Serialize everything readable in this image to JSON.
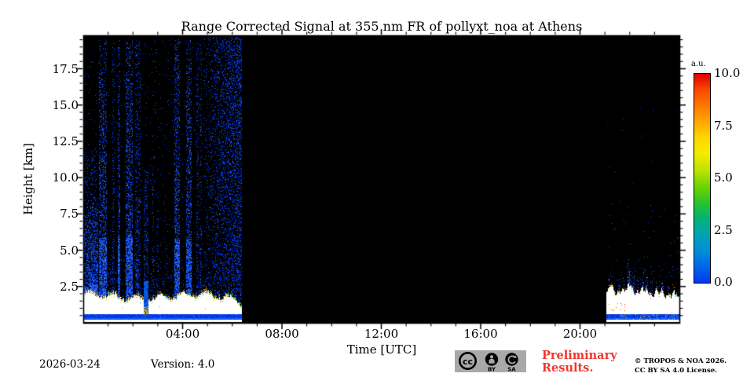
{
  "chart_data": {
    "type": "heatmap",
    "title": "Range Corrected Signal at 355 nm FR of pollyxt_noa at Athens",
    "xlabel": "Time [UTC]",
    "ylabel": "Height [km]",
    "x_axis": {
      "unit": "hours UTC",
      "range": [
        0,
        24
      ],
      "major_ticks": [
        4,
        8,
        12,
        16,
        20
      ],
      "major_tick_labels": [
        "04:00",
        "08:00",
        "12:00",
        "16:00",
        "20:00"
      ],
      "minor_tick_every_hours": 1
    },
    "y_axis": {
      "unit": "km",
      "range": [
        0,
        19.8
      ],
      "major_ticks": [
        2.5,
        5.0,
        7.5,
        10.0,
        12.5,
        15.0,
        17.5
      ],
      "major_tick_labels": [
        "2.5",
        "5.0",
        "7.5",
        "10.0",
        "12.5",
        "15.0",
        "17.5"
      ],
      "minor_tick_every_km": 0.5
    },
    "colorbar": {
      "label": "a.u.",
      "range": [
        0,
        10
      ],
      "ticks": [
        10.0,
        7.5,
        5.0,
        2.5,
        0.0
      ],
      "tick_labels": [
        "10.0",
        "7.5",
        "5.0",
        "2.5",
        "0.0"
      ],
      "colormap": "jet-like",
      "gradient_top_to_bottom": [
        "#dd0000",
        "#fa4800",
        "#ff7800",
        "#ffa800",
        "#ffd800",
        "#f2ec00",
        "#bce300",
        "#6ed400",
        "#2cc32c",
        "#00b375",
        "#00a3b4",
        "#008fd7",
        "#0066e8",
        "#0038f5"
      ]
    },
    "background_color": "#000000",
    "palette": {
      "blues": [
        "#0026d8",
        "#0033f2",
        "#0c47ff",
        "#1e5eff"
      ],
      "bright_blues": [
        "#1e5eff",
        "#3f7cff",
        "#0c47ff"
      ],
      "warm": [
        "#ff7300",
        "#e82800",
        "#ffd900",
        "#9fd500",
        "#35c410",
        "#00b9a8"
      ],
      "white": "#ffffff",
      "band_blue": "#0337e8",
      "band_blue_dark": "#0230c0",
      "band_blue_bright": "#1b62ff",
      "special_blue": "#0468e8",
      "special_warm": [
        "#ffb400",
        "#ff7a00",
        "#e8d000"
      ]
    },
    "segments": {
      "early_measurement": {
        "start_hour": 0.0,
        "end_hour": 6.38,
        "white_band_top_km_base": 1.82,
        "white_band_bottom_km": 0.62,
        "blue_band_km": [
          0.22,
          0.6
        ],
        "near_ground_white_km": [
          0.03,
          0.22
        ],
        "streaks": [
          [
            0.0,
            0.3,
            7.5,
            0.45,
            1
          ],
          [
            0.0,
            0.57,
            12.0,
            0.18,
            0
          ],
          [
            0.3,
            0.6,
            8.0,
            0.55,
            1
          ],
          [
            0.63,
            0.95,
            19.5,
            0.35,
            1
          ],
          [
            0.95,
            1.15,
            5.0,
            0.15,
            0
          ],
          [
            1.18,
            1.28,
            19.5,
            0.22,
            0
          ],
          [
            1.38,
            1.5,
            19.5,
            0.4,
            1
          ],
          [
            1.7,
            2.0,
            19.5,
            0.45,
            1
          ],
          [
            2.08,
            2.3,
            19.5,
            0.25,
            0
          ],
          [
            2.12,
            2.22,
            4.5,
            0.55,
            1
          ],
          [
            2.45,
            2.62,
            10.5,
            0.15,
            0
          ],
          [
            2.78,
            2.86,
            19.5,
            0.15,
            0
          ],
          [
            2.95,
            3.05,
            10.0,
            0.12,
            0
          ],
          [
            3.3,
            3.42,
            6.0,
            0.1,
            0
          ],
          [
            3.67,
            3.88,
            19.5,
            0.4,
            1
          ],
          [
            4.14,
            4.35,
            19.5,
            0.38,
            1
          ],
          [
            4.55,
            4.65,
            19.5,
            0.25,
            0
          ],
          [
            4.68,
            4.76,
            19.5,
            0.22,
            0
          ]
        ],
        "dense_noise": {
          "start_hour": 4.85,
          "end_hour": 6.38,
          "p_low": 0.05,
          "p_high": 0.3
        },
        "special_column": {
          "start_hour": 2.45,
          "end_hour": 2.63,
          "top_km": 2.85,
          "warm_km": [
            0.62,
            1.15
          ]
        }
      },
      "data_gap": {
        "start_hour": 6.38,
        "end_hour": 21.07,
        "value": "no signal (black)"
      },
      "late_measurement": {
        "start_hour": 21.07,
        "end_hour": 24.0,
        "white_band_top_km_base": 2.0,
        "white_band_bottom_km": 0.62,
        "blue_band_km": [
          0.22,
          0.6
        ],
        "near_ground_white_km": [
          0.03,
          0.22
        ],
        "spikes": [
          [
            21.18,
            3.0
          ],
          [
            21.32,
            2.7
          ],
          [
            21.55,
            3.3
          ],
          [
            21.72,
            3.0
          ],
          [
            21.93,
            4.4
          ],
          [
            22.02,
            3.6
          ],
          [
            22.12,
            3.2
          ],
          [
            22.3,
            2.9
          ],
          [
            22.5,
            3.4
          ],
          [
            22.68,
            3.1
          ],
          [
            22.85,
            2.8
          ],
          [
            23.05,
            2.6
          ],
          [
            23.3,
            2.7
          ],
          [
            23.55,
            2.4
          ],
          [
            23.75,
            2.5
          ]
        ],
        "warm_dots_hours": [
          21.1,
          21.8
        ],
        "warm_dots_km": [
          0.8,
          1.5
        ]
      }
    }
  },
  "footer": {
    "date": "2026-03-24",
    "version": "Version: 4.0",
    "preliminary": "Preliminary Results.",
    "preliminary_color": "#f0372e",
    "copyright_line1": "© TROPOS & NOA 2026.",
    "copyright_line2": "CC BY SA 4.0 License."
  },
  "license_badge": {
    "cc": "cc",
    "by": "BY",
    "sa": "SA",
    "background": "#a9a9a9"
  }
}
